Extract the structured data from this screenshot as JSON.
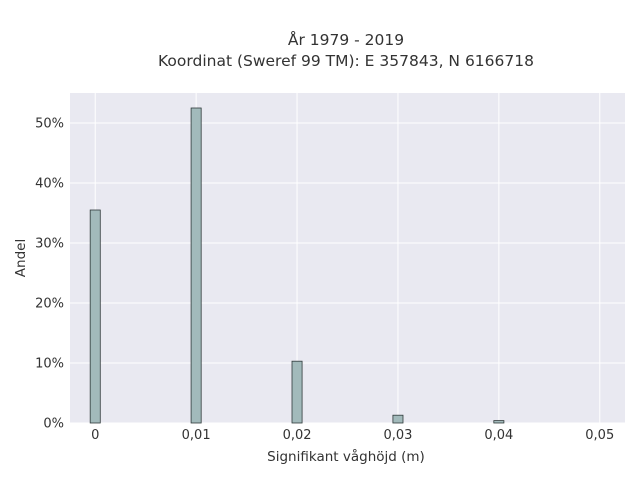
{
  "chart_data": {
    "type": "bar",
    "title": "År 1979 - 2019",
    "subtitle": "Koordinat (Sweref 99 TM): E 357843, N 6166718",
    "xlabel": "Signifikant våghöjd (m)",
    "ylabel": "Andel",
    "x_ticks": [
      "0",
      "0,01",
      "0,02",
      "0,03",
      "0,04",
      "0,05"
    ],
    "y_ticks": [
      "0%",
      "10%",
      "20%",
      "30%",
      "40%",
      "50%"
    ],
    "xlim": [
      -0.0025,
      0.0525
    ],
    "ylim": [
      0,
      55
    ],
    "grid": true,
    "bar_color": "#a2babb",
    "bar_edge_color": "#2f3a3a",
    "plot_background": "#e9e9f1",
    "x": [
      0,
      0.01,
      0.02,
      0.03,
      0.04
    ],
    "values": [
      35.5,
      52.5,
      10.3,
      1.3,
      0.4
    ]
  }
}
